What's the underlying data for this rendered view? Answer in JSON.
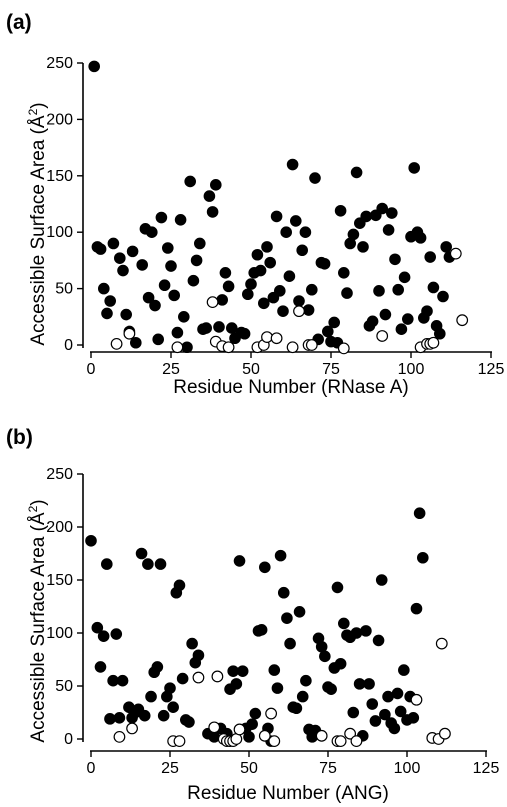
{
  "chart_data": [
    {
      "type": "scatter",
      "panel_label": "(a)",
      "xlabel": "Residue Number (RNase A)",
      "ylabel_main": "Accessible Surface Area (Å",
      "ylabel_sup": "2",
      "ylabel_close": ")",
      "xlim": [
        0,
        125
      ],
      "ylim": [
        -10,
        250
      ],
      "xticks": [
        0,
        25,
        50,
        75,
        100,
        125
      ],
      "yticks": [
        0,
        50,
        100,
        150,
        200,
        250
      ],
      "legend": "none",
      "grid": false,
      "series": [
        {
          "marker": "filled-circle",
          "points": [
            [
              1,
              247
            ],
            [
              2,
              87
            ],
            [
              3,
              85
            ],
            [
              4,
              50
            ],
            [
              5,
              28
            ],
            [
              6,
              39
            ],
            [
              7,
              90
            ],
            [
              9,
              77
            ],
            [
              10,
              66
            ],
            [
              11,
              27
            ],
            [
              12,
              12
            ],
            [
              13,
              83
            ],
            [
              14,
              2
            ],
            [
              16,
              71
            ],
            [
              17,
              103
            ],
            [
              18,
              42
            ],
            [
              19,
              100
            ],
            [
              20,
              35
            ],
            [
              21,
              5
            ],
            [
              22,
              113
            ],
            [
              23,
              53
            ],
            [
              24,
              86
            ],
            [
              25,
              70
            ],
            [
              26,
              44
            ],
            [
              27,
              11
            ],
            [
              28,
              111
            ],
            [
              29,
              25
            ],
            [
              30,
              -2
            ],
            [
              31,
              145
            ],
            [
              32,
              57
            ],
            [
              33,
              75
            ],
            [
              34,
              90
            ],
            [
              35,
              14
            ],
            [
              36,
              15
            ],
            [
              37,
              132
            ],
            [
              38,
              118
            ],
            [
              39,
              142
            ],
            [
              40,
              16
            ],
            [
              41,
              40
            ],
            [
              42,
              64
            ],
            [
              43,
              52
            ],
            [
              44,
              15
            ],
            [
              45,
              6
            ],
            [
              47,
              11
            ],
            [
              48,
              10
            ],
            [
              49,
              45
            ],
            [
              50,
              54
            ],
            [
              51,
              64
            ],
            [
              52,
              80
            ],
            [
              53,
              66
            ],
            [
              54,
              37
            ],
            [
              55,
              87
            ],
            [
              56,
              73
            ],
            [
              57,
              42
            ],
            [
              58,
              114
            ],
            [
              59,
              48
            ],
            [
              60,
              30
            ],
            [
              61,
              100
            ],
            [
              62,
              61
            ],
            [
              63,
              160
            ],
            [
              64,
              110
            ],
            [
              65,
              39
            ],
            [
              66,
              84
            ],
            [
              67,
              100
            ],
            [
              68,
              31
            ],
            [
              69,
              49
            ],
            [
              70,
              148
            ],
            [
              71,
              5
            ],
            [
              72,
              73
            ],
            [
              73,
              72
            ],
            [
              74,
              12
            ],
            [
              75,
              3
            ],
            [
              76,
              20
            ],
            [
              77,
              2
            ],
            [
              78,
              119
            ],
            [
              79,
              64
            ],
            [
              80,
              46
            ],
            [
              81,
              90
            ],
            [
              82,
              98
            ],
            [
              83,
              153
            ],
            [
              84,
              108
            ],
            [
              85,
              87
            ],
            [
              86,
              114
            ],
            [
              87,
              17
            ],
            [
              88,
              21
            ],
            [
              89,
              115
            ],
            [
              90,
              48
            ],
            [
              91,
              121
            ],
            [
              92,
              27
            ],
            [
              93,
              102
            ],
            [
              94,
              117
            ],
            [
              95,
              76
            ],
            [
              96,
              49
            ],
            [
              97,
              14
            ],
            [
              98,
              60
            ],
            [
              99,
              23
            ],
            [
              100,
              96
            ],
            [
              101,
              157
            ],
            [
              102,
              100
            ],
            [
              103,
              95
            ],
            [
              104,
              24
            ],
            [
              105,
              30
            ],
            [
              106,
              78
            ],
            [
              107,
              51
            ],
            [
              108,
              17
            ],
            [
              109,
              10
            ],
            [
              110,
              43
            ],
            [
              111,
              87
            ],
            [
              112,
              78
            ]
          ]
        },
        {
          "marker": "open-circle",
          "points": [
            [
              8,
              1
            ],
            [
              12,
              10
            ],
            [
              27,
              -2
            ],
            [
              38,
              38
            ],
            [
              39,
              3
            ],
            [
              41,
              -1
            ],
            [
              43,
              -2
            ],
            [
              52,
              -2
            ],
            [
              54,
              0
            ],
            [
              55,
              7
            ],
            [
              58,
              6
            ],
            [
              63,
              -2
            ],
            [
              65,
              30
            ],
            [
              68,
              0
            ],
            [
              69,
              0
            ],
            [
              79,
              -3
            ],
            [
              91,
              8
            ],
            [
              103,
              -2
            ],
            [
              105,
              1
            ],
            [
              106,
              1
            ],
            [
              107,
              2
            ],
            [
              114,
              81
            ],
            [
              116,
              22
            ]
          ]
        }
      ]
    },
    {
      "type": "scatter",
      "panel_label": "(b)",
      "xlabel": "Residue Number (ANG)",
      "ylabel_main": "Accessible Surface Area (Å",
      "ylabel_sup": "2",
      "ylabel_close": ")",
      "xlim": [
        0,
        125
      ],
      "ylim": [
        -10,
        250
      ],
      "xticks": [
        0,
        25,
        50,
        75,
        100,
        125
      ],
      "yticks": [
        0,
        50,
        100,
        150,
        200,
        250
      ],
      "legend": "none",
      "grid": false,
      "series": [
        {
          "marker": "filled-circle",
          "points": [
            [
              0,
              187
            ],
            [
              2,
              105
            ],
            [
              3,
              68
            ],
            [
              4,
              97
            ],
            [
              5,
              165
            ],
            [
              6,
              19
            ],
            [
              7,
              55
            ],
            [
              8,
              99
            ],
            [
              9,
              20
            ],
            [
              10,
              55
            ],
            [
              12,
              30
            ],
            [
              13,
              20
            ],
            [
              14,
              25
            ],
            [
              15,
              28
            ],
            [
              16,
              175
            ],
            [
              17,
              22
            ],
            [
              18,
              165
            ],
            [
              19,
              40
            ],
            [
              20,
              63
            ],
            [
              21,
              68
            ],
            [
              22,
              165
            ],
            [
              23,
              22
            ],
            [
              24,
              40
            ],
            [
              25,
              48
            ],
            [
              26,
              30
            ],
            [
              27,
              138
            ],
            [
              28,
              145
            ],
            [
              29,
              57
            ],
            [
              30,
              18
            ],
            [
              31,
              16
            ],
            [
              32,
              90
            ],
            [
              33,
              72
            ],
            [
              34,
              79
            ],
            [
              37,
              5
            ],
            [
              39,
              2
            ],
            [
              41,
              10
            ],
            [
              43,
              5
            ],
            [
              44,
              47
            ],
            [
              45,
              64
            ],
            [
              46,
              52
            ],
            [
              47,
              168
            ],
            [
              48,
              64
            ],
            [
              49,
              10
            ],
            [
              50,
              2
            ],
            [
              51,
              14
            ],
            [
              52,
              24
            ],
            [
              53,
              102
            ],
            [
              54,
              103
            ],
            [
              55,
              162
            ],
            [
              56,
              10
            ],
            [
              57,
              -2
            ],
            [
              58,
              65
            ],
            [
              59,
              48
            ],
            [
              60,
              173
            ],
            [
              61,
              138
            ],
            [
              62,
              114
            ],
            [
              63,
              90
            ],
            [
              64,
              30
            ],
            [
              65,
              29
            ],
            [
              66,
              120
            ],
            [
              67,
              40
            ],
            [
              68,
              55
            ],
            [
              69,
              9
            ],
            [
              70,
              2
            ],
            [
              71,
              8
            ],
            [
              72,
              95
            ],
            [
              73,
              87
            ],
            [
              74,
              78
            ],
            [
              75,
              49
            ],
            [
              76,
              47
            ],
            [
              77,
              67
            ],
            [
              78,
              143
            ],
            [
              79,
              71
            ],
            [
              80,
              109
            ],
            [
              81,
              98
            ],
            [
              82,
              96
            ],
            [
              83,
              25
            ],
            [
              84,
              100
            ],
            [
              85,
              52
            ],
            [
              86,
              3
            ],
            [
              87,
              102
            ],
            [
              88,
              52
            ],
            [
              89,
              33
            ],
            [
              90,
              17
            ],
            [
              91,
              93
            ],
            [
              92,
              150
            ],
            [
              93,
              23
            ],
            [
              94,
              40
            ],
            [
              95,
              15
            ],
            [
              96,
              10
            ],
            [
              97,
              43
            ],
            [
              98,
              26
            ],
            [
              99,
              65
            ],
            [
              100,
              18
            ],
            [
              101,
              40
            ],
            [
              102,
              20
            ],
            [
              103,
              123
            ],
            [
              104,
              213
            ],
            [
              105,
              171
            ]
          ]
        },
        {
          "marker": "open-circle",
          "points": [
            [
              9,
              2
            ],
            [
              13,
              10
            ],
            [
              26,
              -2
            ],
            [
              28,
              -2
            ],
            [
              34,
              58
            ],
            [
              39,
              11
            ],
            [
              40,
              59
            ],
            [
              42,
              0
            ],
            [
              43,
              -2
            ],
            [
              44,
              -2
            ],
            [
              45,
              -2
            ],
            [
              46,
              0
            ],
            [
              47,
              9
            ],
            [
              55,
              3
            ],
            [
              57,
              24
            ],
            [
              58,
              -2
            ],
            [
              73,
              3
            ],
            [
              78,
              -2
            ],
            [
              79,
              -2
            ],
            [
              82,
              5
            ],
            [
              84,
              -2
            ],
            [
              103,
              37
            ],
            [
              108,
              1
            ],
            [
              110,
              0
            ],
            [
              111,
              90
            ],
            [
              112,
              5
            ]
          ]
        }
      ]
    }
  ]
}
